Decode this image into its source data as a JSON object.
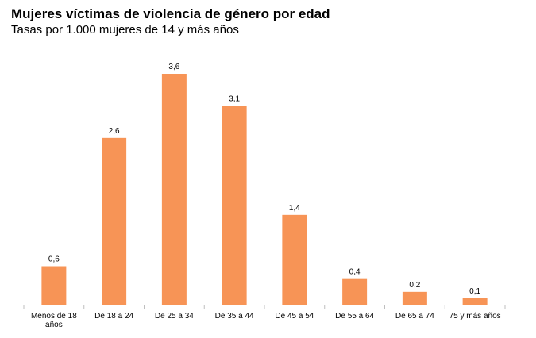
{
  "chart_data": {
    "type": "bar",
    "title": "Mujeres víctimas de violencia de género por edad",
    "subtitle": "Tasas por 1.000 mujeres de 14 y más años",
    "categories": [
      [
        "Menos de 18",
        "años"
      ],
      [
        "De 18 a 24"
      ],
      [
        "De 25 a 34"
      ],
      [
        "De 35 a 44"
      ],
      [
        "De 45 a 54"
      ],
      [
        "De 55 a 64"
      ],
      [
        "De 65 a 74"
      ],
      [
        "75 y más años"
      ]
    ],
    "values": [
      0.6,
      2.6,
      3.6,
      3.1,
      1.4,
      0.4,
      0.2,
      0.1
    ],
    "value_labels": [
      "0,6",
      "2,6",
      "3,6",
      "3,1",
      "1,4",
      "0,4",
      "0,2",
      "0,1"
    ],
    "xlabel": "",
    "ylabel": "",
    "ylim": [
      0,
      3.6
    ],
    "grid": false,
    "bar_color": "#F79456",
    "axis_color": "#BFBFBF"
  }
}
